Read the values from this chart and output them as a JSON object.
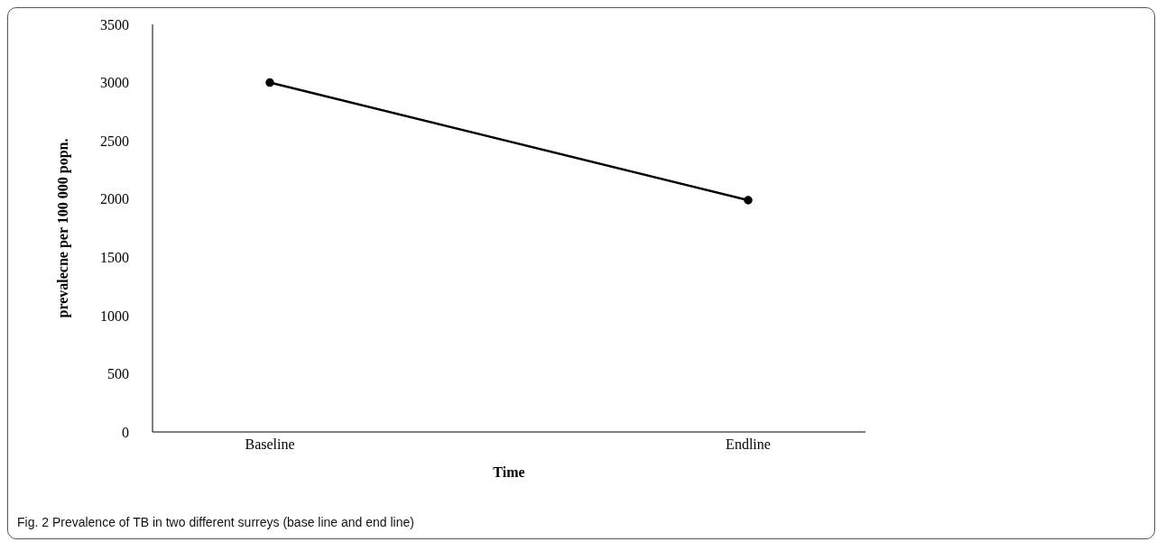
{
  "chart_data": {
    "type": "line",
    "xlabel": "Time",
    "ylabel": "prevalecne per 100 000 popn.",
    "categories": [
      "Baseline",
      "Endline"
    ],
    "series": [
      {
        "color": "#000000",
        "values": [
          3000,
          1990
        ]
      }
    ],
    "ylim": [
      0,
      3500
    ],
    "yticks": [
      0,
      500,
      1000,
      1500,
      2000,
      2500,
      3000,
      3500
    ],
    "marker": "circle",
    "line_style": "solid",
    "grid": false,
    "legend": false,
    "annotations": [
      "Fig. 2 Prevalence of TB in two different surreys (base line and end line)"
    ]
  }
}
